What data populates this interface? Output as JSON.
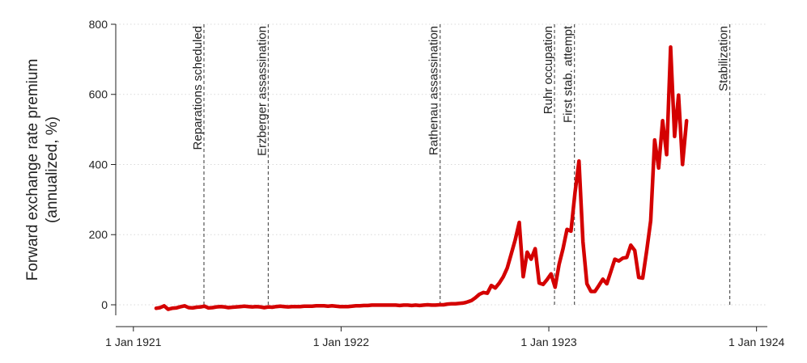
{
  "chart_data": {
    "type": "line",
    "title": "",
    "xlabel": "",
    "ylabel_lines": [
      "Forward exchange rate premium",
      "(annualized, %)"
    ],
    "x_range": [
      "1920-12-01",
      "1924-01-20"
    ],
    "ylim": [
      -30,
      800
    ],
    "y_ticks": [
      0,
      200,
      400,
      600,
      800
    ],
    "x_ticks": [
      {
        "date": "1921-01-01",
        "label": "1 Jan 1921"
      },
      {
        "date": "1922-01-01",
        "label": "1 Jan 1922"
      },
      {
        "date": "1923-01-01",
        "label": "1 Jan 1923"
      },
      {
        "date": "1924-01-01",
        "label": "1 Jan 1924"
      }
    ],
    "grid": "horizontal-dotted",
    "colors": {
      "series": "#d40000",
      "events": "#555555",
      "grid": "#d9d9d9"
    },
    "events": [
      {
        "date": "1921-05-05",
        "label": "Reparations scheduled"
      },
      {
        "date": "1921-08-26",
        "label": "Erzberger assassination"
      },
      {
        "date": "1922-06-24",
        "label": "Rathenau assassination"
      },
      {
        "date": "1923-01-11",
        "label": "Ruhr occupation"
      },
      {
        "date": "1923-02-15",
        "label": "First stab. attempt"
      },
      {
        "date": "1923-11-15",
        "label": "Stabilization"
      }
    ],
    "series": [
      {
        "color": "#d40000",
        "points": [
          [
            "1921-02-10",
            -10
          ],
          [
            "1921-02-17",
            -8
          ],
          [
            "1921-02-24",
            -3
          ],
          [
            "1921-03-03",
            -13
          ],
          [
            "1921-03-10",
            -10
          ],
          [
            "1921-03-17",
            -9
          ],
          [
            "1921-03-24",
            -6
          ],
          [
            "1921-04-01",
            -3
          ],
          [
            "1921-04-08",
            -8
          ],
          [
            "1921-04-15",
            -9
          ],
          [
            "1921-04-22",
            -7
          ],
          [
            "1921-04-29",
            -6
          ],
          [
            "1921-05-06",
            -4
          ],
          [
            "1921-05-13",
            -9
          ],
          [
            "1921-05-20",
            -8
          ],
          [
            "1921-05-27",
            -6
          ],
          [
            "1921-06-03",
            -5
          ],
          [
            "1921-06-10",
            -6
          ],
          [
            "1921-06-17",
            -8
          ],
          [
            "1921-06-24",
            -7
          ],
          [
            "1921-07-01",
            -6
          ],
          [
            "1921-07-08",
            -5
          ],
          [
            "1921-07-15",
            -4
          ],
          [
            "1921-07-22",
            -5
          ],
          [
            "1921-07-29",
            -6
          ],
          [
            "1921-08-05",
            -5
          ],
          [
            "1921-08-12",
            -6
          ],
          [
            "1921-08-19",
            -8
          ],
          [
            "1921-08-26",
            -6
          ],
          [
            "1921-09-02",
            -7
          ],
          [
            "1921-09-09",
            -5
          ],
          [
            "1921-09-16",
            -4
          ],
          [
            "1921-09-23",
            -5
          ],
          [
            "1921-09-30",
            -6
          ],
          [
            "1921-10-07",
            -5
          ],
          [
            "1921-10-14",
            -5
          ],
          [
            "1921-10-21",
            -5
          ],
          [
            "1921-10-28",
            -4
          ],
          [
            "1921-11-04",
            -4
          ],
          [
            "1921-11-11",
            -4
          ],
          [
            "1921-11-18",
            -3
          ],
          [
            "1921-11-25",
            -3
          ],
          [
            "1921-12-02",
            -3
          ],
          [
            "1921-12-09",
            -4
          ],
          [
            "1921-12-16",
            -3
          ],
          [
            "1921-12-23",
            -4
          ],
          [
            "1921-12-30",
            -5
          ],
          [
            "1922-01-06",
            -5
          ],
          [
            "1922-01-13",
            -5
          ],
          [
            "1922-01-20",
            -4
          ],
          [
            "1922-01-27",
            -3
          ],
          [
            "1922-02-03",
            -3
          ],
          [
            "1922-02-10",
            -2
          ],
          [
            "1922-02-17",
            -2
          ],
          [
            "1922-02-24",
            -1
          ],
          [
            "1922-03-03",
            -1
          ],
          [
            "1922-03-10",
            -1
          ],
          [
            "1922-03-17",
            -1
          ],
          [
            "1922-03-24",
            -1
          ],
          [
            "1922-03-31",
            -1
          ],
          [
            "1922-04-07",
            -1
          ],
          [
            "1922-04-14",
            -2
          ],
          [
            "1922-04-21",
            -1
          ],
          [
            "1922-04-28",
            -1
          ],
          [
            "1922-05-05",
            -2
          ],
          [
            "1922-05-12",
            -1
          ],
          [
            "1922-05-19",
            -2
          ],
          [
            "1922-05-26",
            -1
          ],
          [
            "1922-06-02",
            0
          ],
          [
            "1922-06-09",
            -1
          ],
          [
            "1922-06-16",
            -1
          ],
          [
            "1922-06-23",
            0
          ],
          [
            "1922-06-30",
            0
          ],
          [
            "1922-07-07",
            2
          ],
          [
            "1922-07-14",
            3
          ],
          [
            "1922-07-21",
            3
          ],
          [
            "1922-07-28",
            4
          ],
          [
            "1922-08-04",
            5
          ],
          [
            "1922-08-11",
            8
          ],
          [
            "1922-08-18",
            12
          ],
          [
            "1922-08-25",
            20
          ],
          [
            "1922-09-01",
            30
          ],
          [
            "1922-09-08",
            35
          ],
          [
            "1922-09-15",
            33
          ],
          [
            "1922-09-22",
            55
          ],
          [
            "1922-09-29",
            48
          ],
          [
            "1922-10-06",
            62
          ],
          [
            "1922-10-13",
            80
          ],
          [
            "1922-10-20",
            105
          ],
          [
            "1922-10-27",
            145
          ],
          [
            "1922-11-03",
            185
          ],
          [
            "1922-11-10",
            235
          ],
          [
            "1922-11-17",
            80
          ],
          [
            "1922-11-24",
            150
          ],
          [
            "1922-12-01",
            130
          ],
          [
            "1922-12-08",
            160
          ],
          [
            "1922-12-15",
            62
          ],
          [
            "1922-12-22",
            58
          ],
          [
            "1922-12-29",
            72
          ],
          [
            "1923-01-05",
            88
          ],
          [
            "1923-01-12",
            50
          ],
          [
            "1923-01-19",
            115
          ],
          [
            "1923-01-26",
            160
          ],
          [
            "1923-02-02",
            215
          ],
          [
            "1923-02-09",
            210
          ],
          [
            "1923-02-16",
            320
          ],
          [
            "1923-02-23",
            410
          ],
          [
            "1923-03-02",
            180
          ],
          [
            "1923-03-09",
            60
          ],
          [
            "1923-03-16",
            38
          ],
          [
            "1923-03-23",
            38
          ],
          [
            "1923-03-30",
            55
          ],
          [
            "1923-04-06",
            73
          ],
          [
            "1923-04-13",
            60
          ],
          [
            "1923-04-20",
            95
          ],
          [
            "1923-04-27",
            130
          ],
          [
            "1923-05-04",
            125
          ],
          [
            "1923-05-11",
            133
          ],
          [
            "1923-05-18",
            135
          ],
          [
            "1923-05-25",
            170
          ],
          [
            "1923-06-01",
            155
          ],
          [
            "1923-06-08",
            78
          ],
          [
            "1923-06-15",
            76
          ],
          [
            "1923-06-22",
            155
          ],
          [
            "1923-06-29",
            240
          ],
          [
            "1923-07-06",
            470
          ],
          [
            "1923-07-13",
            390
          ],
          [
            "1923-07-20",
            525
          ],
          [
            "1923-07-27",
            428
          ],
          [
            "1923-08-03",
            735
          ],
          [
            "1923-08-10",
            480
          ],
          [
            "1923-08-17",
            598
          ],
          [
            "1923-08-24",
            400
          ],
          [
            "1923-08-31",
            525
          ]
        ]
      }
    ]
  }
}
